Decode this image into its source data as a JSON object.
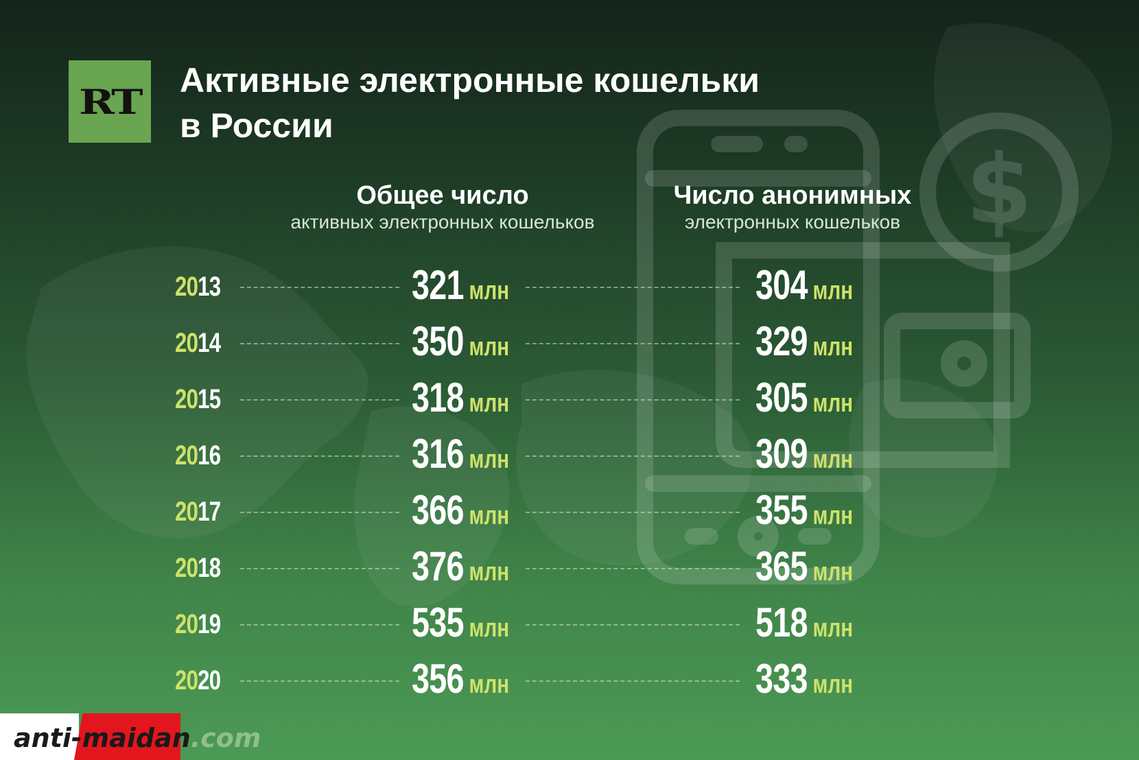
{
  "header": {
    "logo_text": "RT",
    "title_line1": "Активные электронные кошельки",
    "title_line2": "в России"
  },
  "columns": {
    "total": {
      "title": "Общее число",
      "subtitle": "активных электронных кошельков"
    },
    "anonymous": {
      "title": "Число анонимных",
      "subtitle": "электронных кошельков"
    }
  },
  "unit": "млн",
  "watermark": {
    "part1": "anti-",
    "part2": "maidan",
    "part3": ".com"
  },
  "colors": {
    "accent": "#cde26a",
    "logo_bg": "#6aa551",
    "watermark_red": "#e3161d"
  },
  "icons": [
    "world-map-icon",
    "smartphone-icon",
    "dollar-coin-icon",
    "wallet-icon"
  ],
  "chart_data": {
    "type": "table",
    "title": "Активные электронные кошельки в России",
    "categories": [
      "2013",
      "2014",
      "2015",
      "2016",
      "2017",
      "2018",
      "2019",
      "2020"
    ],
    "series": [
      {
        "name": "Общее число активных электронных кошельков",
        "unit": "млн",
        "values": [
          321,
          350,
          318,
          316,
          366,
          376,
          535,
          356
        ]
      },
      {
        "name": "Число анонимных электронных кошельков",
        "unit": "млн",
        "values": [
          304,
          329,
          305,
          309,
          355,
          365,
          518,
          333
        ]
      }
    ]
  }
}
